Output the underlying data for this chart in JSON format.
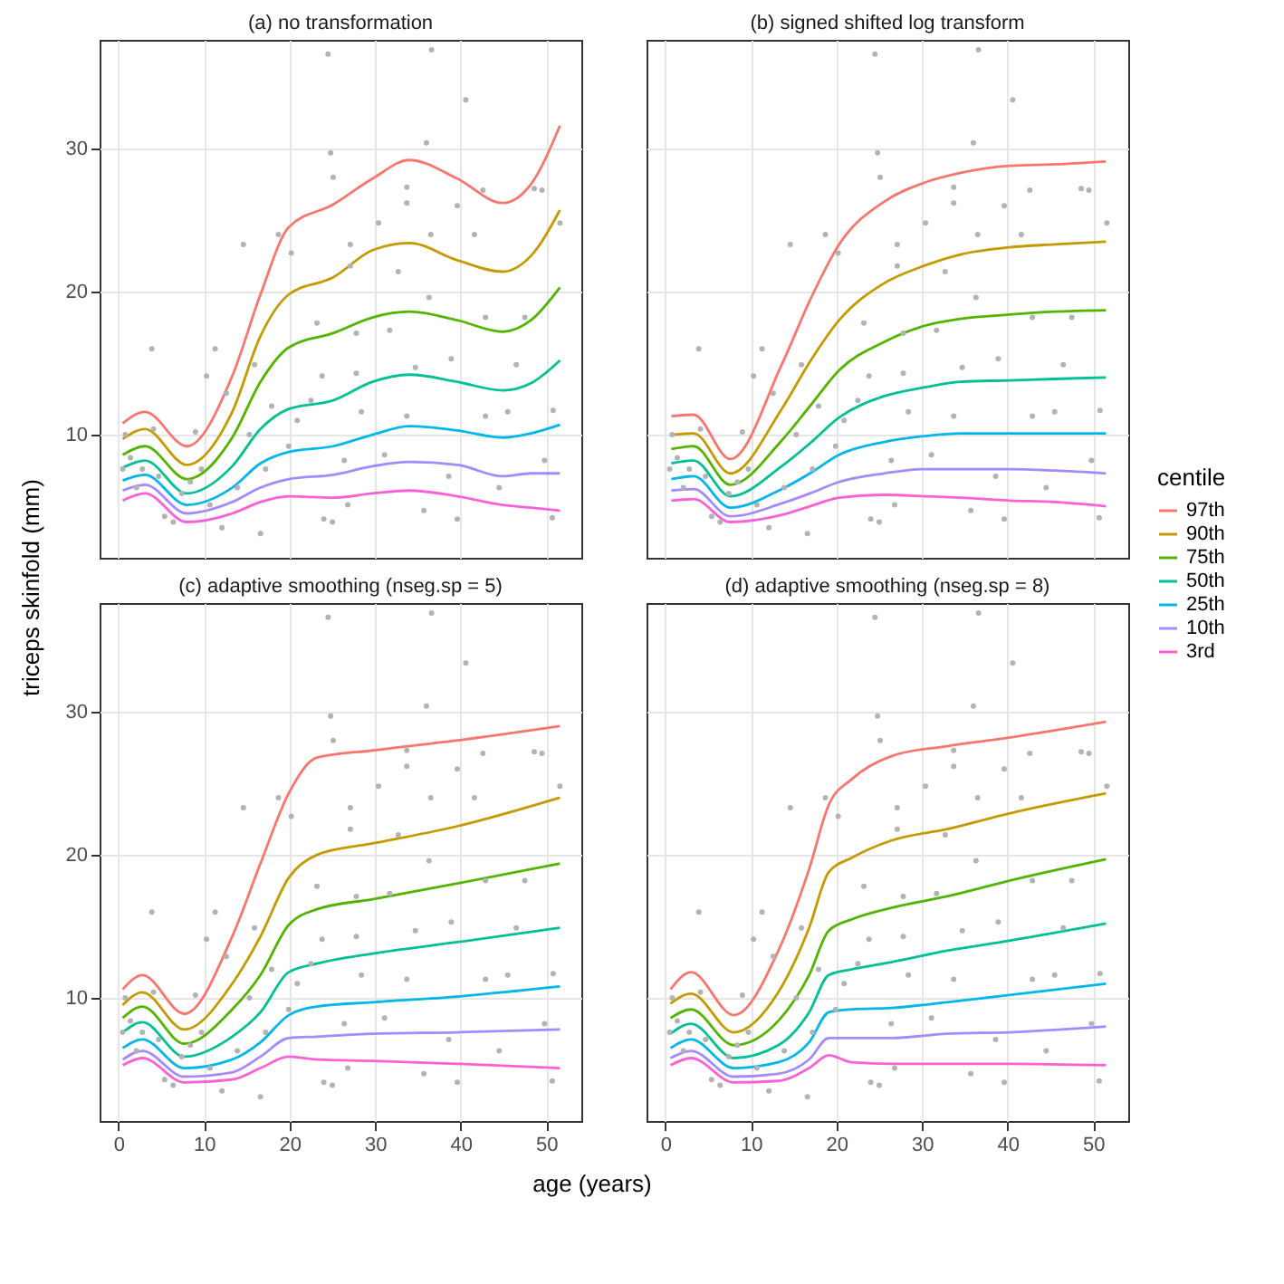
{
  "chart_data": [
    {
      "type": "line",
      "title": "(a) no transformation",
      "ylabel": "triceps skinfold (mm)",
      "legend_title": "centile",
      "legend": "right",
      "tick_labels": "y",
      "grid": true,
      "xlim": [
        -2.2,
        54.1
      ],
      "ylim": [
        1.4,
        37.6
      ],
      "xticks": [
        0,
        10,
        20,
        30,
        40,
        50
      ],
      "yticks": [
        10,
        20,
        30
      ],
      "x": [
        0.5,
        3.1,
        8.0,
        13.3,
        16.6,
        19.9,
        25.1,
        29.7,
        34.0,
        39.6,
        44.9,
        48.2,
        51.6
      ],
      "series": [
        {
          "type": "scatter",
          "color": "#b3b3b3",
          "marker": "circle",
          "x": [
            24.5,
            36.6,
            40.6,
            36.0,
            24.8,
            25.1,
            33.7,
            33.7,
            39.6,
            42.6,
            48.6,
            49.5,
            51.6,
            14.6,
            18.7,
            20.2,
            27.1,
            30.4,
            36.5,
            41.6,
            32.7,
            36.3,
            27.1,
            23.2,
            27.8,
            31.7,
            42.9,
            47.5,
            3.9,
            11.3,
            10.3,
            12.6,
            15.9,
            23.8,
            27.8,
            34.7,
            38.9,
            46.5,
            50.8,
            22.5,
            28.4,
            33.7,
            42.9,
            45.5,
            19.9,
            26.4,
            31.1,
            38.6,
            44.5,
            49.8,
            24.0,
            25.0,
            16.6,
            26.8,
            35.7,
            39.6,
            50.7,
            0.8,
            1.4,
            2.1,
            2.8,
            4.1,
            5.4,
            6.4,
            7.4,
            9.0,
            9.7,
            10.7,
            12.1,
            13.9,
            15.3,
            17.2,
            17.9,
            20.9,
            0.5,
            4.7,
            8.4
          ],
          "values": [
            36.6,
            36.9,
            33.4,
            30.4,
            29.7,
            28.0,
            27.3,
            26.2,
            26.0,
            27.1,
            27.2,
            27.1,
            24.8,
            23.3,
            24.0,
            22.7,
            23.3,
            24.8,
            24.0,
            24.0,
            21.4,
            19.6,
            21.8,
            17.8,
            17.1,
            17.3,
            18.2,
            18.2,
            16.0,
            16.0,
            14.1,
            12.9,
            14.9,
            14.1,
            14.3,
            14.7,
            15.3,
            14.9,
            11.7,
            12.4,
            11.6,
            11.3,
            11.3,
            11.6,
            9.2,
            8.2,
            8.6,
            7.1,
            6.3,
            8.2,
            4.1,
            3.9,
            3.1,
            5.1,
            4.7,
            4.1,
            4.2,
            10.0,
            8.4,
            6.3,
            7.6,
            10.4,
            4.3,
            3.9,
            5.9,
            10.2,
            7.6,
            5.1,
            3.5,
            6.3,
            10.0,
            7.6,
            12.0,
            11.0,
            7.6,
            7.1,
            6.7
          ]
        },
        {
          "name": "97th",
          "color": "#f8766d",
          "values": [
            10.8,
            11.6,
            9.2,
            14.1,
            19.8,
            24.5,
            26.1,
            27.9,
            29.2,
            27.9,
            26.2,
            27.5,
            31.6
          ]
        },
        {
          "name": "90th",
          "color": "#c49a00",
          "values": [
            9.7,
            10.4,
            7.9,
            11.6,
            16.9,
            19.8,
            21.0,
            22.9,
            23.4,
            22.2,
            21.4,
            22.5,
            25.7
          ]
        },
        {
          "name": "75th",
          "color": "#53b400",
          "values": [
            8.6,
            9.2,
            6.9,
            9.8,
            13.7,
            16.1,
            17.1,
            18.2,
            18.6,
            18.0,
            17.2,
            18.0,
            20.3
          ]
        },
        {
          "name": "50th",
          "color": "#00c094",
          "values": [
            7.7,
            8.2,
            5.9,
            7.8,
            10.4,
            11.8,
            12.4,
            13.7,
            14.2,
            13.7,
            13.1,
            13.6,
            15.2
          ]
        },
        {
          "name": "25th",
          "color": "#00b6eb",
          "values": [
            6.8,
            7.2,
            5.1,
            6.3,
            8.0,
            8.8,
            9.2,
            10.0,
            10.6,
            10.3,
            9.8,
            10.1,
            10.7
          ]
        },
        {
          "name": "10th",
          "color": "#a58aff",
          "values": [
            6.1,
            6.5,
            4.5,
            5.3,
            6.3,
            6.9,
            7.2,
            7.8,
            8.1,
            7.9,
            7.1,
            7.3,
            7.3
          ]
        },
        {
          "name": "3rd",
          "color": "#fb61d7",
          "values": [
            5.4,
            5.9,
            3.9,
            4.5,
            5.3,
            5.7,
            5.6,
            5.9,
            6.1,
            5.7,
            5.1,
            4.9,
            4.7
          ]
        }
      ]
    },
    {
      "type": "line",
      "title": "(b) signed shifted log transform",
      "tick_labels": false,
      "grid": true,
      "xlim": [
        -2.2,
        54.1
      ],
      "ylim": [
        1.4,
        37.6
      ],
      "xticks": [
        0,
        10,
        20,
        30,
        40,
        50
      ],
      "yticks": [
        10,
        20,
        30
      ],
      "x": [
        0.7,
        3.3,
        7.6,
        13.6,
        16.9,
        20.3,
        25.6,
        30.2,
        34.5,
        40.2,
        45.5,
        51.5
      ],
      "series": [
        {
          "type": "scatter",
          "color": "#b3b3b3",
          "marker": "circle",
          "x": [
            24.5,
            36.6,
            40.6,
            36.0,
            24.8,
            25.1,
            33.7,
            33.7,
            39.6,
            42.6,
            48.6,
            49.5,
            51.6,
            14.6,
            18.7,
            20.2,
            27.1,
            30.4,
            36.5,
            41.6,
            32.7,
            36.3,
            27.1,
            23.2,
            27.8,
            31.7,
            42.9,
            47.5,
            3.9,
            11.3,
            10.3,
            12.6,
            15.9,
            23.8,
            27.8,
            34.7,
            38.9,
            46.5,
            50.8,
            22.5,
            28.4,
            33.7,
            42.9,
            45.5,
            19.9,
            26.4,
            31.1,
            38.6,
            44.5,
            49.8,
            24.0,
            25.0,
            16.6,
            26.8,
            35.7,
            39.6,
            50.7,
            0.8,
            1.4,
            2.1,
            2.8,
            4.1,
            5.4,
            6.4,
            7.4,
            9.0,
            9.7,
            10.7,
            12.1,
            13.9,
            15.3,
            17.2,
            17.9,
            20.9,
            0.5,
            4.7,
            8.4
          ],
          "values": [
            36.6,
            36.9,
            33.4,
            30.4,
            29.7,
            28.0,
            27.3,
            26.2,
            26.0,
            27.1,
            27.2,
            27.1,
            24.8,
            23.3,
            24.0,
            22.7,
            23.3,
            24.8,
            24.0,
            24.0,
            21.4,
            19.6,
            21.8,
            17.8,
            17.1,
            17.3,
            18.2,
            18.2,
            16.0,
            16.0,
            14.1,
            12.9,
            14.9,
            14.1,
            14.3,
            14.7,
            15.3,
            14.9,
            11.7,
            12.4,
            11.6,
            11.3,
            11.3,
            11.6,
            9.2,
            8.2,
            8.6,
            7.1,
            6.3,
            8.2,
            4.1,
            3.9,
            3.1,
            5.1,
            4.7,
            4.1,
            4.2,
            10.0,
            8.4,
            6.3,
            7.6,
            10.4,
            4.3,
            3.9,
            5.9,
            10.2,
            7.6,
            5.1,
            3.5,
            6.3,
            10.0,
            7.6,
            12.0,
            11.0,
            7.6,
            7.1,
            6.7
          ]
        },
        {
          "name": "97th",
          "color": "#f8766d",
          "values": [
            11.3,
            11.4,
            8.3,
            14.9,
            19.4,
            23.3,
            26.3,
            27.6,
            28.3,
            28.8,
            28.9,
            29.1
          ]
        },
        {
          "name": "90th",
          "color": "#c49a00",
          "values": [
            10.0,
            10.1,
            7.3,
            11.8,
            15.1,
            18.0,
            20.6,
            21.8,
            22.6,
            23.1,
            23.3,
            23.5
          ]
        },
        {
          "name": "75th",
          "color": "#53b400",
          "values": [
            9.0,
            9.2,
            6.5,
            9.6,
            12.0,
            14.5,
            16.5,
            17.6,
            18.1,
            18.4,
            18.6,
            18.7
          ]
        },
        {
          "name": "50th",
          "color": "#00c094",
          "values": [
            8.0,
            8.2,
            5.7,
            7.8,
            9.4,
            11.2,
            12.7,
            13.3,
            13.7,
            13.8,
            13.9,
            14.0
          ]
        },
        {
          "name": "25th",
          "color": "#00b6eb",
          "values": [
            6.9,
            7.1,
            4.9,
            6.2,
            7.3,
            8.6,
            9.5,
            9.9,
            10.1,
            10.1,
            10.1,
            10.1
          ]
        },
        {
          "name": "10th",
          "color": "#a58aff",
          "values": [
            6.1,
            6.2,
            4.3,
            5.2,
            5.9,
            6.7,
            7.3,
            7.6,
            7.6,
            7.6,
            7.5,
            7.3
          ]
        },
        {
          "name": "3rd",
          "color": "#fb61d7",
          "values": [
            5.4,
            5.5,
            3.9,
            4.4,
            5.0,
            5.6,
            5.8,
            5.7,
            5.6,
            5.4,
            5.3,
            5.0
          ]
        }
      ]
    },
    {
      "type": "line",
      "title": "(c) adaptive smoothing (nseg.sp = 5)",
      "xlabel": "age (years)",
      "grid": true,
      "xlim": [
        -2.2,
        54.1
      ],
      "ylim": [
        1.4,
        37.6
      ],
      "xticks": [
        0,
        10,
        20,
        30,
        40,
        50
      ],
      "yticks": [
        10,
        20,
        30
      ],
      "x": [
        0.5,
        2.8,
        7.7,
        13.3,
        16.6,
        19.9,
        23.2,
        29.7,
        39.6,
        51.6
      ],
      "series": [
        {
          "type": "scatter",
          "color": "#b3b3b3",
          "marker": "circle",
          "x": [
            24.5,
            36.6,
            40.6,
            36.0,
            24.8,
            25.1,
            33.7,
            33.7,
            39.6,
            42.6,
            48.6,
            49.5,
            51.6,
            14.6,
            18.7,
            20.2,
            27.1,
            30.4,
            36.5,
            41.6,
            32.7,
            36.3,
            27.1,
            23.2,
            27.8,
            31.7,
            42.9,
            47.5,
            3.9,
            11.3,
            10.3,
            12.6,
            15.9,
            23.8,
            27.8,
            34.7,
            38.9,
            46.5,
            50.8,
            22.5,
            28.4,
            33.7,
            42.9,
            45.5,
            19.9,
            26.4,
            31.1,
            38.6,
            44.5,
            49.8,
            24.0,
            25.0,
            16.6,
            26.8,
            35.7,
            39.6,
            50.7,
            0.8,
            1.4,
            2.1,
            2.8,
            4.1,
            5.4,
            6.4,
            7.4,
            9.0,
            9.7,
            10.7,
            12.1,
            13.9,
            15.3,
            17.2,
            17.9,
            20.9,
            0.5,
            4.7,
            8.4
          ],
          "values": [
            36.6,
            36.9,
            33.4,
            30.4,
            29.7,
            28.0,
            27.3,
            26.2,
            26.0,
            27.1,
            27.2,
            27.1,
            24.8,
            23.3,
            24.0,
            22.7,
            23.3,
            24.8,
            24.0,
            24.0,
            21.4,
            19.6,
            21.8,
            17.8,
            17.1,
            17.3,
            18.2,
            18.2,
            16.0,
            16.0,
            14.1,
            12.9,
            14.9,
            14.1,
            14.3,
            14.7,
            15.3,
            14.9,
            11.7,
            12.4,
            11.6,
            11.3,
            11.3,
            11.6,
            9.2,
            8.2,
            8.6,
            7.1,
            6.3,
            8.2,
            4.1,
            3.9,
            3.1,
            5.1,
            4.7,
            4.1,
            4.2,
            10.0,
            8.4,
            6.3,
            7.6,
            10.4,
            4.3,
            3.9,
            5.9,
            10.2,
            7.6,
            5.1,
            3.5,
            6.3,
            10.0,
            7.6,
            12.0,
            11.0,
            7.6,
            7.1,
            6.7
          ]
        },
        {
          "name": "97th",
          "color": "#f8766d",
          "values": [
            10.6,
            11.6,
            8.9,
            14.3,
            19.4,
            24.3,
            26.8,
            27.3,
            28.0,
            29.0
          ]
        },
        {
          "name": "90th",
          "color": "#c49a00",
          "values": [
            9.5,
            10.4,
            7.8,
            11.0,
            14.3,
            18.4,
            20.0,
            20.8,
            22.0,
            24.0
          ]
        },
        {
          "name": "75th",
          "color": "#53b400",
          "values": [
            8.6,
            9.4,
            6.8,
            9.2,
            11.6,
            15.1,
            16.2,
            16.9,
            18.0,
            19.4
          ]
        },
        {
          "name": "50th",
          "color": "#00c094",
          "values": [
            7.6,
            8.3,
            5.9,
            7.3,
            9.0,
            11.8,
            12.4,
            13.1,
            13.9,
            14.9
          ]
        },
        {
          "name": "25th",
          "color": "#00b6eb",
          "values": [
            6.5,
            7.1,
            5.1,
            5.7,
            6.9,
            8.8,
            9.4,
            9.7,
            10.1,
            10.8
          ]
        },
        {
          "name": "10th",
          "color": "#a58aff",
          "values": [
            5.7,
            6.3,
            4.5,
            4.8,
            5.9,
            7.2,
            7.3,
            7.5,
            7.6,
            7.8
          ]
        },
        {
          "name": "3rd",
          "color": "#fb61d7",
          "values": [
            5.3,
            5.8,
            4.1,
            4.3,
            5.1,
            5.9,
            5.7,
            5.6,
            5.4,
            5.1
          ]
        }
      ]
    },
    {
      "type": "line",
      "title": "(d) adaptive smoothing (nseg.sp = 8)",
      "tick_labels": "x",
      "grid": true,
      "xlim": [
        -2.2,
        54.1
      ],
      "ylim": [
        1.4,
        37.6
      ],
      "xticks": [
        0,
        10,
        20,
        30,
        40,
        50
      ],
      "yticks": [
        10,
        20,
        30
      ],
      "x": [
        0.6,
        3.0,
        8.0,
        13.2,
        16.8,
        19.1,
        21.8,
        26.4,
        32.9,
        40.2,
        51.5
      ],
      "series": [
        {
          "type": "scatter",
          "color": "#b3b3b3",
          "marker": "circle",
          "x": [
            24.5,
            36.6,
            40.6,
            36.0,
            24.8,
            25.1,
            33.7,
            33.7,
            39.6,
            42.6,
            48.6,
            49.5,
            51.6,
            14.6,
            18.7,
            20.2,
            27.1,
            30.4,
            36.5,
            41.6,
            32.7,
            36.3,
            27.1,
            23.2,
            27.8,
            31.7,
            42.9,
            47.5,
            3.9,
            11.3,
            10.3,
            12.6,
            15.9,
            23.8,
            27.8,
            34.7,
            38.9,
            46.5,
            50.8,
            22.5,
            28.4,
            33.7,
            42.9,
            45.5,
            19.9,
            26.4,
            31.1,
            38.6,
            44.5,
            49.8,
            24.0,
            25.0,
            16.6,
            26.8,
            35.7,
            39.6,
            50.7,
            0.8,
            1.4,
            2.1,
            2.8,
            4.1,
            5.4,
            6.4,
            7.4,
            9.0,
            9.7,
            10.7,
            12.1,
            13.9,
            15.3,
            17.2,
            17.9,
            20.9,
            0.5,
            4.7,
            8.4
          ],
          "values": [
            36.6,
            36.9,
            33.4,
            30.4,
            29.7,
            28.0,
            27.3,
            26.2,
            26.0,
            27.1,
            27.2,
            27.1,
            24.8,
            23.3,
            24.0,
            22.7,
            23.3,
            24.8,
            24.0,
            24.0,
            21.4,
            19.6,
            21.8,
            17.8,
            17.1,
            17.3,
            18.2,
            18.2,
            16.0,
            16.0,
            14.1,
            12.9,
            14.9,
            14.1,
            14.3,
            14.7,
            15.3,
            14.9,
            11.7,
            12.4,
            11.6,
            11.3,
            11.3,
            11.6,
            9.2,
            8.2,
            8.6,
            7.1,
            6.3,
            8.2,
            4.1,
            3.9,
            3.1,
            5.1,
            4.7,
            4.1,
            4.2,
            10.0,
            8.4,
            6.3,
            7.6,
            10.4,
            4.3,
            3.9,
            5.9,
            10.2,
            7.6,
            5.1,
            3.5,
            6.3,
            10.0,
            7.6,
            12.0,
            11.0,
            7.6,
            7.1,
            6.7
          ]
        },
        {
          "name": "97th",
          "color": "#f8766d",
          "values": [
            10.6,
            11.8,
            8.8,
            13.3,
            19.0,
            23.5,
            25.3,
            26.9,
            27.6,
            28.2,
            29.3
          ]
        },
        {
          "name": "90th",
          "color": "#c49a00",
          "values": [
            9.6,
            10.3,
            7.6,
            10.4,
            14.9,
            18.8,
            19.8,
            21.0,
            21.8,
            22.9,
            24.3
          ]
        },
        {
          "name": "75th",
          "color": "#53b400",
          "values": [
            8.6,
            9.2,
            6.7,
            8.4,
            11.6,
            14.7,
            15.5,
            16.3,
            17.1,
            18.2,
            19.7
          ]
        },
        {
          "name": "50th",
          "color": "#00c094",
          "values": [
            7.5,
            8.2,
            5.8,
            6.7,
            9.0,
            11.6,
            12.0,
            12.5,
            13.3,
            14.0,
            15.2
          ]
        },
        {
          "name": "25th",
          "color": "#00b6eb",
          "values": [
            6.5,
            7.1,
            5.1,
            5.5,
            6.9,
            9.0,
            9.2,
            9.3,
            9.7,
            10.2,
            11.0
          ]
        },
        {
          "name": "10th",
          "color": "#a58aff",
          "values": [
            5.8,
            6.3,
            4.5,
            4.7,
            5.7,
            7.2,
            7.2,
            7.2,
            7.5,
            7.6,
            8.0
          ]
        },
        {
          "name": "3rd",
          "color": "#fb61d7",
          "values": [
            5.3,
            5.8,
            4.1,
            4.2,
            5.1,
            6.0,
            5.5,
            5.4,
            5.4,
            5.4,
            5.3
          ]
        }
      ]
    }
  ]
}
